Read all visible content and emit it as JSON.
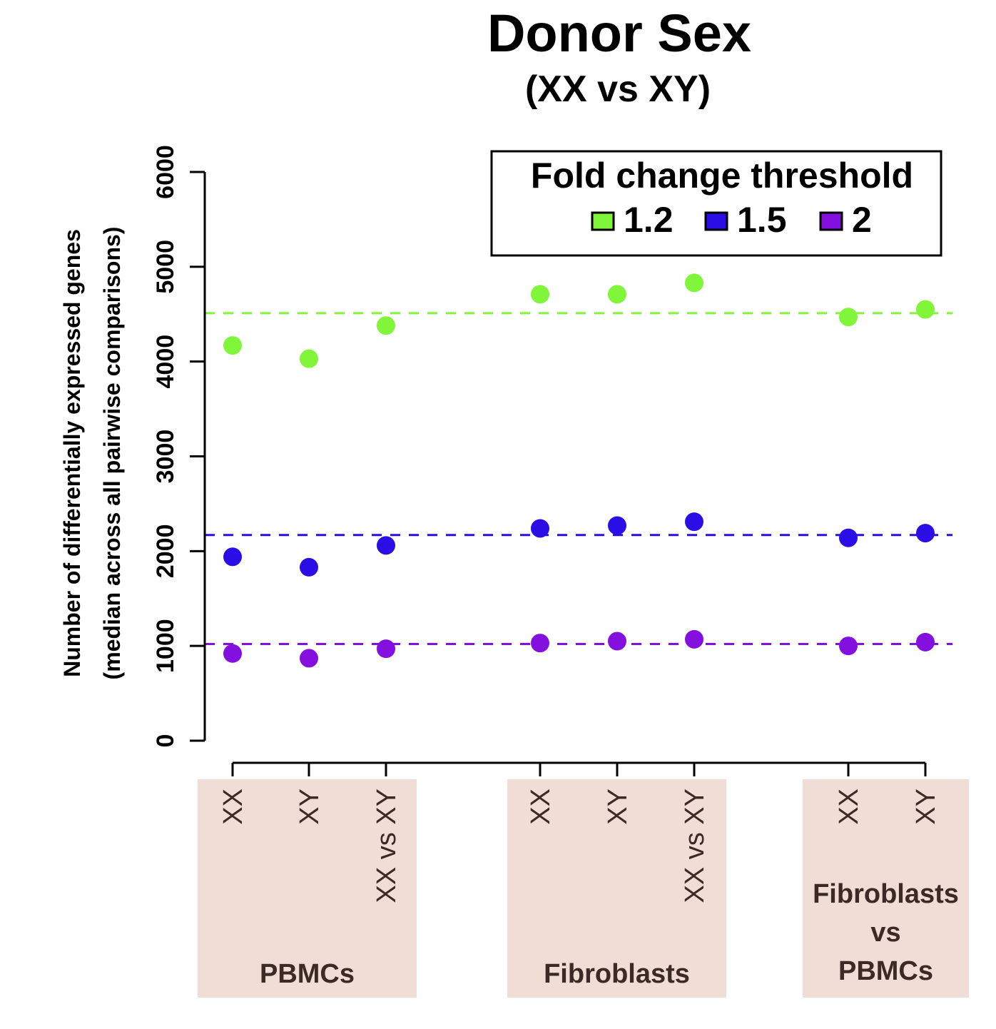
{
  "chart_data": {
    "type": "scatter",
    "title": "Donor Sex",
    "subtitle": "(XX vs XY)",
    "ylabel_line1": "Number of differentially expressed genes",
    "ylabel_line2": "(median across all pairwise comparisons)",
    "ylim": [
      0,
      6000
    ],
    "yticks": [
      0,
      1000,
      2000,
      3000,
      4000,
      5000,
      6000
    ],
    "categories": [
      "XX",
      "XY",
      "XX vs XY",
      "XX",
      "XY",
      "XX vs XY",
      "XX",
      "XY"
    ],
    "groups": [
      {
        "label_lines": [
          "PBMCs"
        ],
        "categories": [
          0,
          1,
          2
        ]
      },
      {
        "label_lines": [
          "Fibroblasts"
        ],
        "categories": [
          3,
          4,
          5
        ]
      },
      {
        "label_lines": [
          "Fibroblasts",
          "vs",
          "PBMCs"
        ],
        "categories": [
          6,
          7
        ]
      }
    ],
    "group_color": "#f0ded6",
    "legend": {
      "title": "Fold change threshold",
      "position": "top-right"
    },
    "series": [
      {
        "name": "1.2",
        "color": "#80f53a",
        "values": [
          4170,
          4030,
          4380,
          4710,
          4710,
          4830,
          4470,
          4550
        ],
        "reference": 4510
      },
      {
        "name": "1.5",
        "color": "#2b0de6",
        "values": [
          1940,
          1830,
          2060,
          2240,
          2270,
          2310,
          2140,
          2190
        ],
        "reference": 2170
      },
      {
        "name": "2",
        "color": "#8410e0",
        "values": [
          920,
          870,
          970,
          1030,
          1050,
          1070,
          1000,
          1040
        ],
        "reference": 1020
      }
    ]
  }
}
